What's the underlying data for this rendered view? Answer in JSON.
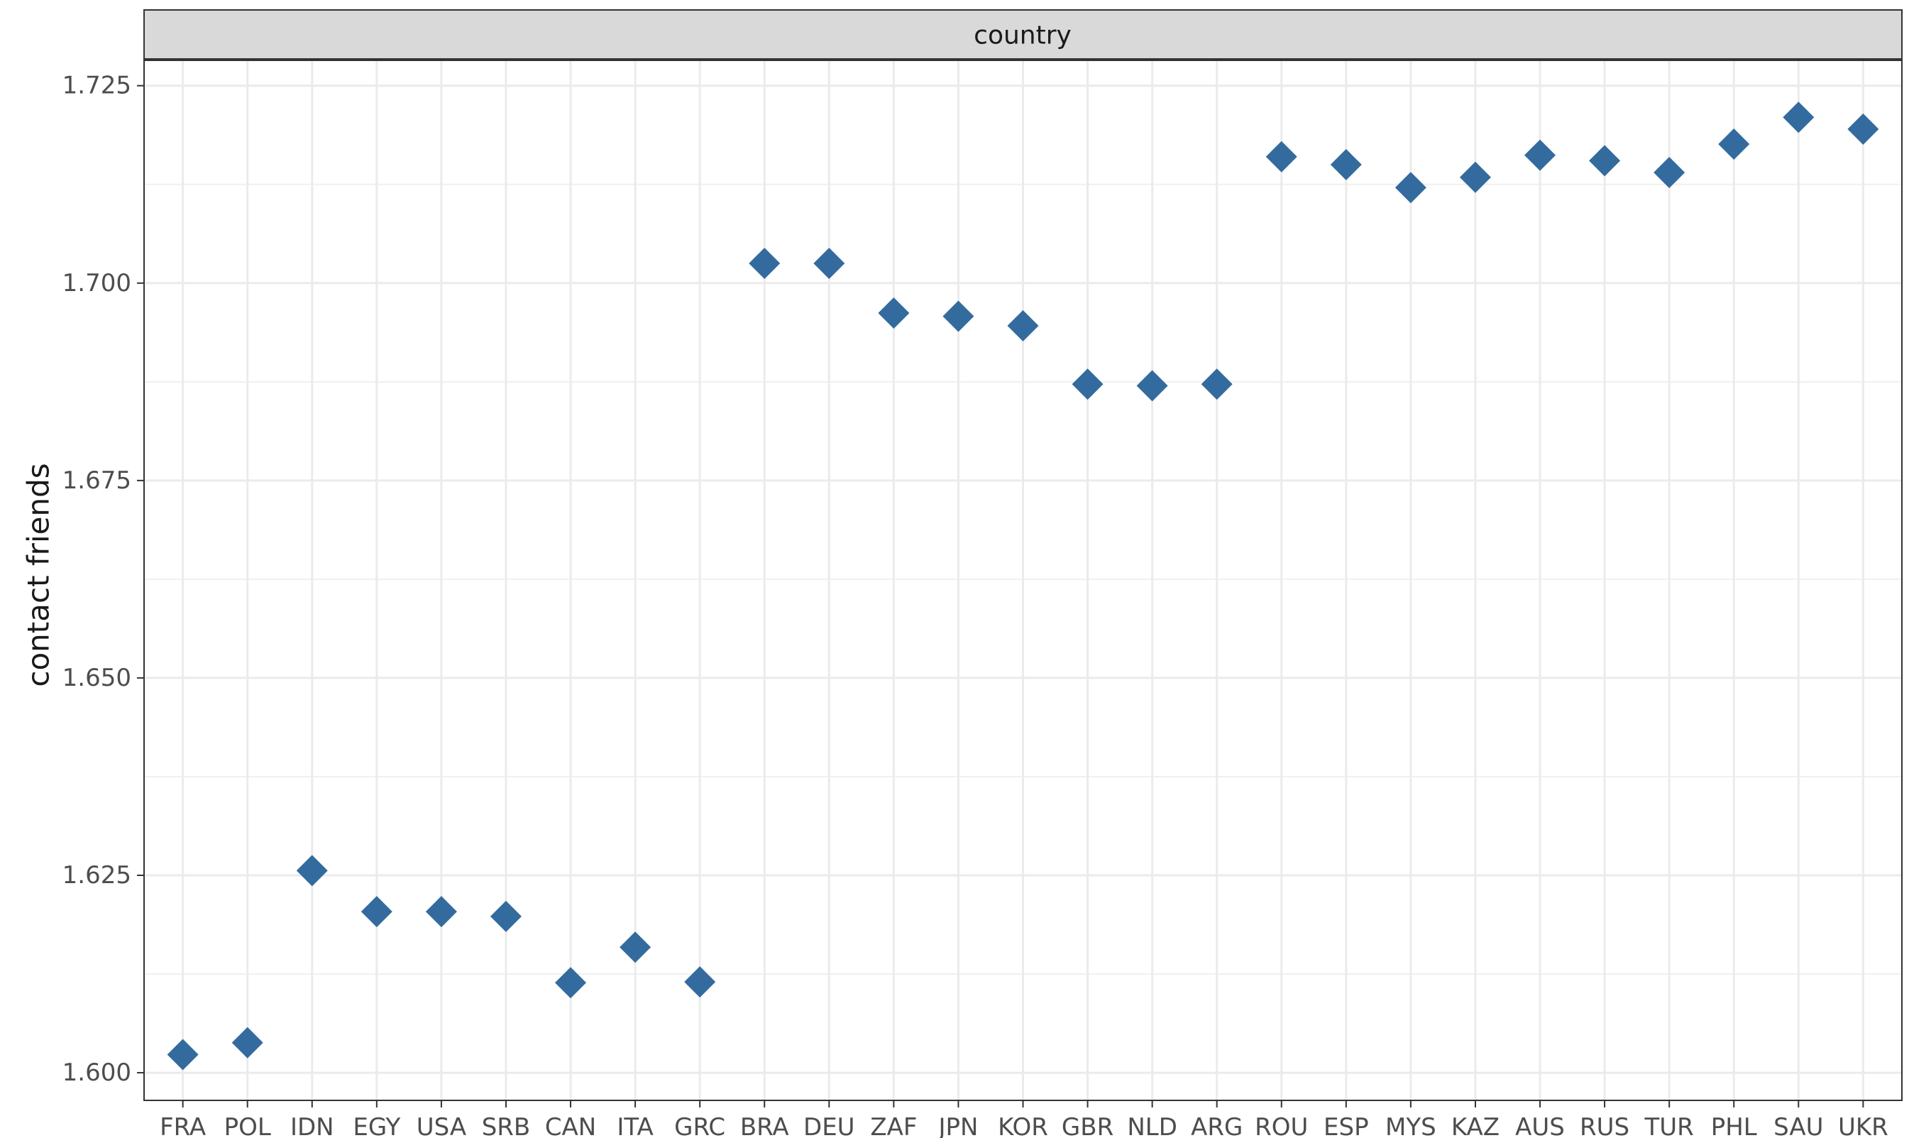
{
  "chart_data": {
    "type": "scatter",
    "facet_label": "country",
    "xlabel": "",
    "ylabel": "contact friends",
    "ylim": [
      1.5965,
      1.7283
    ],
    "yticks": [
      1.6,
      1.625,
      1.65,
      1.675,
      1.7,
      1.725
    ],
    "ytick_labels": [
      "1.600",
      "1.625",
      "1.650",
      "1.675",
      "1.700",
      "1.725"
    ],
    "categories": [
      "FRA",
      "POL",
      "IDN",
      "EGY",
      "USA",
      "SRB",
      "CAN",
      "ITA",
      "GRC",
      "BRA",
      "DEU",
      "ZAF",
      "JPN",
      "KOR",
      "GBR",
      "NLD",
      "ARG",
      "ROU",
      "ESP",
      "MYS",
      "KAZ",
      "AUS",
      "RUS",
      "TUR",
      "PHL",
      "SAU",
      "UKR"
    ],
    "values": [
      1.6023,
      1.6038,
      1.6256,
      1.6204,
      1.6204,
      1.6198,
      1.6114,
      1.6159,
      1.6115,
      1.7025,
      1.7025,
      1.6962,
      1.6958,
      1.6946,
      1.6872,
      1.687,
      1.6872,
      1.716,
      1.715,
      1.7121,
      1.7134,
      1.7162,
      1.7155,
      1.714,
      1.7176,
      1.721,
      1.7195
    ],
    "marker": "diamond",
    "marker_color": "#336B9E",
    "grid": true
  }
}
